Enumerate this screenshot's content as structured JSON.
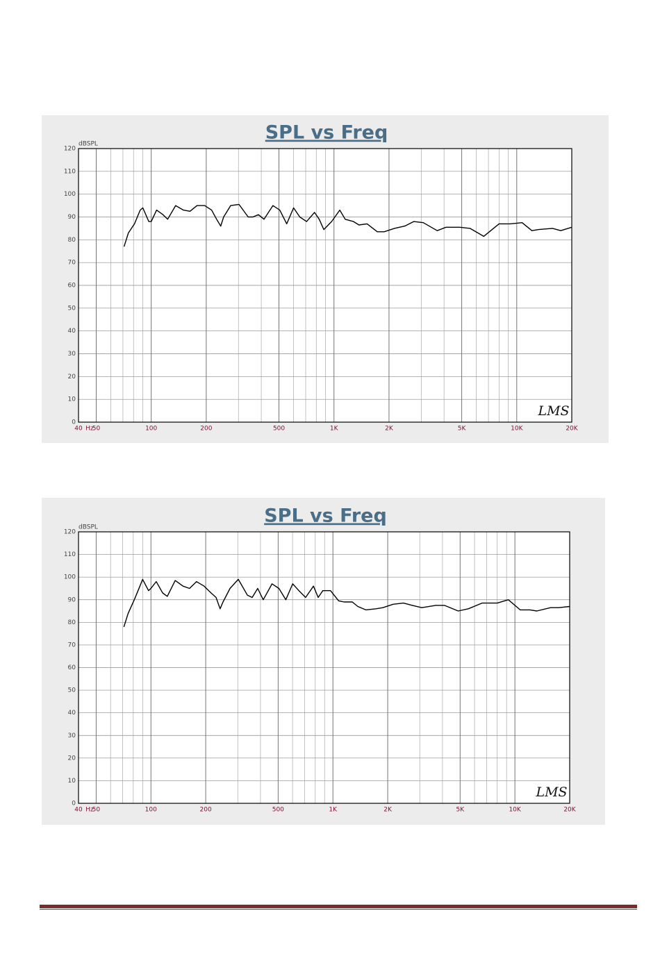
{
  "chart_data": [
    {
      "type": "line",
      "title": "SPL vs Freq",
      "y_label": "dBSPL",
      "x_label": "Hz",
      "logo": "LMS",
      "xscale": "log",
      "grid": true,
      "xlim": [
        40,
        20000
      ],
      "ylim": [
        0,
        120
      ],
      "xticks": [
        40,
        50,
        100,
        200,
        500,
        {
          "value": 1000,
          "label": "1K"
        },
        {
          "value": 2000,
          "label": "2K"
        },
        {
          "value": 5000,
          "label": "5K"
        },
        {
          "value": 10000,
          "label": "10K"
        },
        {
          "value": 20000,
          "label": "20K"
        }
      ],
      "xminorticks": [
        60,
        70,
        80,
        90,
        300,
        400,
        600,
        700,
        800,
        900,
        3000,
        4000,
        6000,
        7000,
        8000,
        9000
      ],
      "yticks": [
        0,
        10,
        20,
        30,
        40,
        50,
        60,
        70,
        80,
        90,
        100,
        110,
        120
      ],
      "x": [
        71,
        75,
        81,
        87,
        90,
        97,
        100,
        107,
        116,
        123,
        136,
        150,
        163,
        178,
        196,
        214,
        228,
        240,
        249,
        272,
        302,
        339,
        360,
        386,
        414,
        463,
        505,
        551,
        601,
        650,
        708,
        782,
        830,
        880,
        970,
        1076,
        1152,
        1278,
        1370,
        1517,
        1726,
        1882,
        2143,
        2440,
        2730,
        3082,
        3670,
        4100,
        4880,
        5550,
        6600,
        8000,
        9200,
        10700,
        12100,
        13200,
        15700,
        17400,
        20000
      ],
      "series": [
        {
          "color": "#000000",
          "values": [
            77,
            83,
            87,
            93,
            94,
            88,
            88,
            93,
            91,
            89,
            95,
            93,
            92.5,
            95,
            95,
            93,
            89,
            86,
            90,
            95,
            95.5,
            90,
            90,
            91,
            89,
            95,
            93,
            87,
            94,
            90,
            88,
            92,
            89,
            84.5,
            88,
            93,
            89,
            88,
            86.5,
            87,
            83.5,
            83.5,
            85,
            86,
            88,
            87.5,
            84,
            85.5,
            85.5,
            85,
            81.5,
            87,
            87,
            87.5,
            84,
            84.5,
            85,
            84,
            85.5
          ]
        }
      ]
    },
    {
      "type": "line",
      "title": "SPL vs Freq",
      "y_label": "dBSPL",
      "x_label": "Hz",
      "logo": "LMS",
      "xscale": "log",
      "grid": true,
      "xlim": [
        40,
        20000
      ],
      "ylim": [
        0,
        120
      ],
      "xticks": [
        40,
        50,
        100,
        200,
        500,
        {
          "value": 1000,
          "label": "1K"
        },
        {
          "value": 2000,
          "label": "2K"
        },
        {
          "value": 5000,
          "label": "5K"
        },
        {
          "value": 10000,
          "label": "10K"
        },
        {
          "value": 20000,
          "label": "20K"
        }
      ],
      "xminorticks": [
        60,
        70,
        80,
        90,
        300,
        400,
        600,
        700,
        800,
        900,
        3000,
        4000,
        6000,
        7000,
        8000,
        9000
      ],
      "yticks": [
        0,
        10,
        20,
        30,
        40,
        50,
        60,
        70,
        80,
        90,
        100,
        110,
        120
      ],
      "x": [
        71,
        75,
        81,
        87,
        90,
        97,
        100,
        107,
        116,
        123,
        136,
        150,
        163,
        178,
        196,
        214,
        228,
        240,
        249,
        272,
        302,
        339,
        360,
        386,
        414,
        463,
        505,
        551,
        601,
        650,
        708,
        782,
        830,
        880,
        970,
        1076,
        1152,
        1278,
        1370,
        1517,
        1726,
        1882,
        2143,
        2440,
        2730,
        3082,
        3670,
        4100,
        4880,
        5550,
        6600,
        8000,
        9200,
        10700,
        12100,
        13200,
        15700,
        17400,
        20000
      ],
      "series": [
        {
          "color": "#000000",
          "values": [
            78,
            84,
            90,
            96,
            99,
            94,
            95,
            98,
            93,
            91.5,
            98.5,
            96,
            95,
            98,
            96,
            93,
            91,
            86,
            89,
            95,
            99,
            92,
            91,
            95,
            90,
            97,
            95,
            90,
            97,
            94,
            91,
            96,
            91,
            94,
            94,
            89.5,
            89,
            89,
            87,
            85.5,
            86,
            86.5,
            88,
            88.5,
            87.5,
            86.5,
            87.5,
            87.5,
            85,
            86,
            88.5,
            88.5,
            90,
            85.5,
            85.5,
            85,
            86.5,
            86.5,
            87
          ]
        }
      ]
    }
  ]
}
